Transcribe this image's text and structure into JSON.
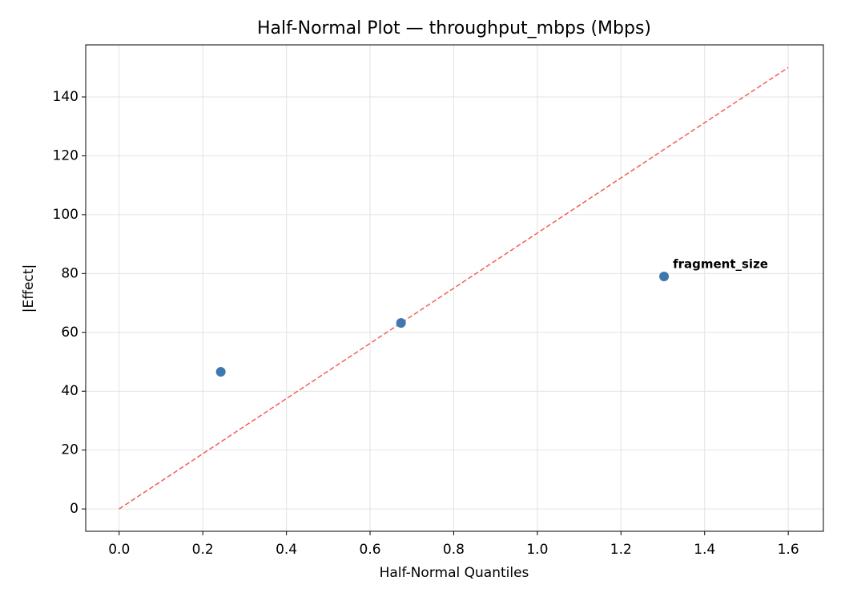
{
  "chart_data": {
    "type": "scatter",
    "title": "Half-Normal Plot — throughput_mbps (Mbps)",
    "xlabel": "Half-Normal Quantiles",
    "ylabel": "|Effect|",
    "x": [
      0.243,
      0.674,
      1.303
    ],
    "values": [
      46.6,
      63.2,
      79.0
    ],
    "point_labels": [
      null,
      null,
      "fragment_size"
    ],
    "color": "#3f78b0",
    "label_color": "#ee0000",
    "reference_line": {
      "x": [
        0,
        1.6
      ],
      "y": [
        0,
        150
      ],
      "color": "#f0605a"
    },
    "xlim": [
      -0.08,
      1.684
    ],
    "ylim": [
      -7.6,
      157.7
    ],
    "xticks": [
      {
        "value": 0,
        "label": "0.0"
      },
      0.2,
      0.4,
      0.6,
      0.8,
      {
        "value": 1,
        "label": "1.0"
      },
      1.2,
      1.4,
      1.6
    ],
    "yticks": [
      0,
      20,
      40,
      60,
      80,
      100,
      120,
      140
    ],
    "grid": true
  }
}
